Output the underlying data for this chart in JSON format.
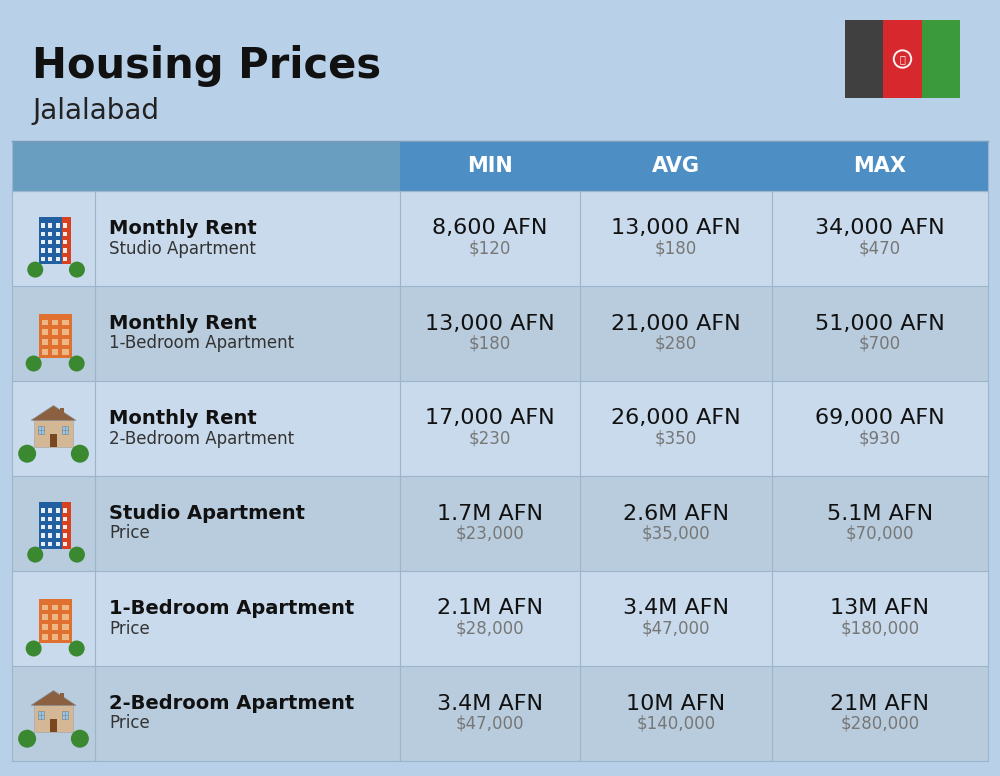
{
  "title": "Housing Prices",
  "subtitle": "Jalalabad",
  "background_color": "#b8d0e8",
  "header_bg_color": "#4d8ec4",
  "header_text_color": "#ffffff",
  "header_labels": [
    "MIN",
    "AVG",
    "MAX"
  ],
  "row_bg_colors": [
    "#c8daeb",
    "#b8ccdd"
  ],
  "col_divider_color": "#9ab5cc",
  "rows": [
    {
      "label_bold": "Monthly Rent",
      "label_light": "Studio Apartment",
      "min_afn": "8,600 AFN",
      "min_usd": "$120",
      "avg_afn": "13,000 AFN",
      "avg_usd": "$180",
      "max_afn": "34,000 AFN",
      "max_usd": "$470",
      "icon_type": "studio_blue"
    },
    {
      "label_bold": "Monthly Rent",
      "label_light": "1-Bedroom Apartment",
      "min_afn": "13,000 AFN",
      "min_usd": "$180",
      "avg_afn": "21,000 AFN",
      "avg_usd": "$280",
      "max_afn": "51,000 AFN",
      "max_usd": "$700",
      "icon_type": "one_bed_orange"
    },
    {
      "label_bold": "Monthly Rent",
      "label_light": "2-Bedroom Apartment",
      "min_afn": "17,000 AFN",
      "min_usd": "$230",
      "avg_afn": "26,000 AFN",
      "avg_usd": "$350",
      "max_afn": "69,000 AFN",
      "max_usd": "$930",
      "icon_type": "two_bed_tan"
    },
    {
      "label_bold": "Studio Apartment",
      "label_light": "Price",
      "min_afn": "1.7M AFN",
      "min_usd": "$23,000",
      "avg_afn": "2.6M AFN",
      "avg_usd": "$35,000",
      "max_afn": "5.1M AFN",
      "max_usd": "$70,000",
      "icon_type": "studio_blue"
    },
    {
      "label_bold": "1-Bedroom Apartment",
      "label_light": "Price",
      "min_afn": "2.1M AFN",
      "min_usd": "$28,000",
      "avg_afn": "3.4M AFN",
      "avg_usd": "$47,000",
      "max_afn": "13M AFN",
      "max_usd": "$180,000",
      "icon_type": "one_bed_orange"
    },
    {
      "label_bold": "2-Bedroom Apartment",
      "label_light": "Price",
      "min_afn": "3.4M AFN",
      "min_usd": "$47,000",
      "avg_afn": "10M AFN",
      "avg_usd": "$140,000",
      "max_afn": "21M AFN",
      "max_usd": "$280,000",
      "icon_type": "two_bed_tan"
    }
  ],
  "flag_colors": [
    "#404040",
    "#d7282d",
    "#3a9a3c"
  ],
  "title_fontsize": 30,
  "subtitle_fontsize": 20,
  "afn_fontsize": 16,
  "usd_fontsize": 12,
  "label_bold_fontsize": 14,
  "label_light_fontsize": 12,
  "header_fontsize": 15,
  "fig_w": 10.0,
  "fig_h": 7.76,
  "dpi": 100
}
